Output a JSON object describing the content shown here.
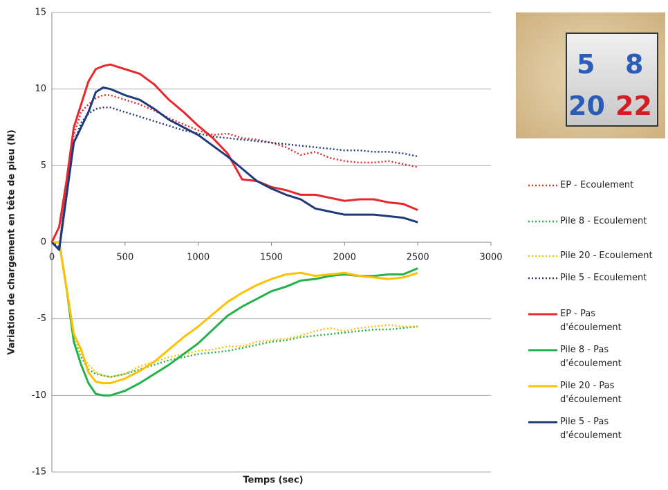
{
  "chart_data": {
    "type": "line",
    "x_label": "Temps (sec)",
    "y_label": "Variation de chargement en tête de pieu (N)",
    "x": [
      0,
      50,
      100,
      150,
      200,
      250,
      300,
      350,
      400,
      500,
      600,
      700,
      800,
      900,
      1000,
      1100,
      1200,
      1300,
      1400,
      1500,
      1600,
      1700,
      1800,
      1900,
      2000,
      2100,
      2200,
      2300,
      2400,
      2500
    ],
    "xlim": [
      0,
      3000
    ],
    "xticks": [
      0,
      500,
      1000,
      1500,
      2000,
      2500,
      3000
    ],
    "ylim": [
      -15,
      15
    ],
    "yticks": [
      -15,
      -10,
      -5,
      0,
      5,
      10,
      15
    ],
    "grid": true,
    "legend": "right",
    "series": [
      {
        "name": "EP - Ecoulement",
        "color": "#e8262b",
        "style": "dotted",
        "values": [
          0,
          -0.5,
          4,
          7,
          8.5,
          9,
          9.4,
          9.6,
          9.6,
          9.3,
          9,
          8.6,
          8.1,
          7.7,
          7.3,
          7,
          7.1,
          6.8,
          6.7,
          6.5,
          6.2,
          5.7,
          5.9,
          5.5,
          5.3,
          5.2,
          5.2,
          5.3,
          5.1,
          4.9
        ]
      },
      {
        "name": "Pile 8 - Ecoulement",
        "color": "#22b14c",
        "style": "dotted",
        "values": [
          0,
          0,
          -3,
          -6,
          -7.5,
          -8.3,
          -8.6,
          -8.7,
          -8.8,
          -8.6,
          -8.3,
          -8,
          -7.7,
          -7.5,
          -7.3,
          -7.2,
          -7.1,
          -6.9,
          -6.7,
          -6.5,
          -6.4,
          -6.2,
          -6.1,
          -6,
          -5.9,
          -5.8,
          -5.7,
          -5.7,
          -5.6,
          -5.5
        ]
      },
      {
        "name": "Pile 20 - Ecoulement",
        "color": "#ffc000",
        "style": "dotted",
        "values": [
          0,
          0,
          -3,
          -6,
          -7.3,
          -8,
          -8.5,
          -8.7,
          -8.8,
          -8.6,
          -8.1,
          -7.8,
          -7.5,
          -7.3,
          -7.1,
          -7,
          -6.8,
          -6.8,
          -6.5,
          -6.4,
          -6.3,
          -6.1,
          -5.8,
          -5.6,
          -5.8,
          -5.6,
          -5.5,
          -5.4,
          -5.5,
          -5.5
        ]
      },
      {
        "name": "Pile 5 - Ecoulement",
        "color": "#1f3a7a",
        "style": "dotted",
        "values": [
          0,
          -0.3,
          3.5,
          6.5,
          7.8,
          8.4,
          8.7,
          8.8,
          8.8,
          8.5,
          8.2,
          7.9,
          7.6,
          7.3,
          7.1,
          6.9,
          6.8,
          6.7,
          6.6,
          6.5,
          6.4,
          6.3,
          6.2,
          6.1,
          6,
          6,
          5.9,
          5.9,
          5.8,
          5.6
        ]
      },
      {
        "name": "EP - Pas d'écoulement",
        "color": "#e8262b",
        "style": "solid",
        "values": [
          0,
          1,
          4,
          7.5,
          9,
          10.5,
          11.3,
          11.5,
          11.6,
          11.3,
          11,
          10.3,
          9.3,
          8.5,
          7.6,
          6.8,
          5.8,
          4.1,
          4,
          3.6,
          3.4,
          3.1,
          3.1,
          2.9,
          2.7,
          2.8,
          2.8,
          2.6,
          2.5,
          2.1
        ]
      },
      {
        "name": "Pile 8 - Pas d'écoulement",
        "color": "#22b14c",
        "style": "solid",
        "values": [
          0,
          0,
          -3,
          -6.5,
          -8,
          -9.2,
          -9.9,
          -10,
          -10,
          -9.7,
          -9.2,
          -8.6,
          -8,
          -7.3,
          -6.6,
          -5.7,
          -4.8,
          -4.2,
          -3.7,
          -3.2,
          -2.9,
          -2.5,
          -2.4,
          -2.2,
          -2.1,
          -2.2,
          -2.2,
          -2.1,
          -2.1,
          -1.7
        ]
      },
      {
        "name": "Pile 20 - Pas d'écoulement",
        "color": "#ffc000",
        "style": "solid",
        "values": [
          0,
          0,
          -3,
          -6,
          -7,
          -8.5,
          -9.1,
          -9.2,
          -9.2,
          -8.9,
          -8.4,
          -7.8,
          -7,
          -6.2,
          -5.5,
          -4.7,
          -3.9,
          -3.3,
          -2.8,
          -2.4,
          -2.1,
          -2,
          -2.2,
          -2.1,
          -2,
          -2.2,
          -2.3,
          -2.4,
          -2.3,
          -2
        ]
      },
      {
        "name": "Pile 5 - Pas d'écoulement",
        "color": "#1f3a7a",
        "style": "solid",
        "values": [
          0,
          -0.5,
          3,
          6.5,
          7.5,
          8.5,
          9.8,
          10.1,
          10,
          9.6,
          9.3,
          8.7,
          8,
          7.5,
          7,
          6.3,
          5.6,
          4.8,
          4,
          3.5,
          3.1,
          2.8,
          2.2,
          2,
          1.8,
          1.8,
          1.8,
          1.7,
          1.6,
          1.3
        ]
      }
    ]
  },
  "inset": {
    "labels": [
      "5",
      "8",
      "20",
      "22"
    ]
  }
}
